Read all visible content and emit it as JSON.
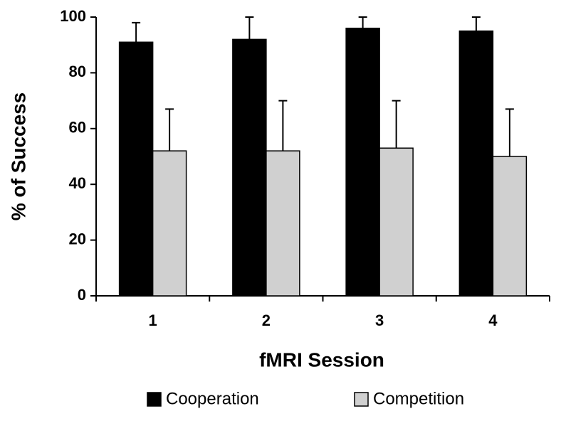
{
  "chart_data": {
    "type": "bar",
    "x_label": "fMRI Session",
    "y_label": "% of Success",
    "categories": [
      "1",
      "2",
      "3",
      "4"
    ],
    "series": [
      {
        "name": "Cooperation",
        "color": "#000000",
        "values": [
          91,
          92,
          96,
          95
        ],
        "errors": [
          7,
          8,
          4,
          5
        ]
      },
      {
        "name": "Competition",
        "color": "#d0d0d0",
        "values": [
          52,
          52,
          53,
          50
        ],
        "errors": [
          15,
          18,
          17,
          17
        ]
      }
    ],
    "ylim": [
      0,
      100
    ],
    "yticks": [
      0,
      20,
      40,
      60,
      80,
      100
    ],
    "grid": false,
    "legend": "bottom"
  }
}
